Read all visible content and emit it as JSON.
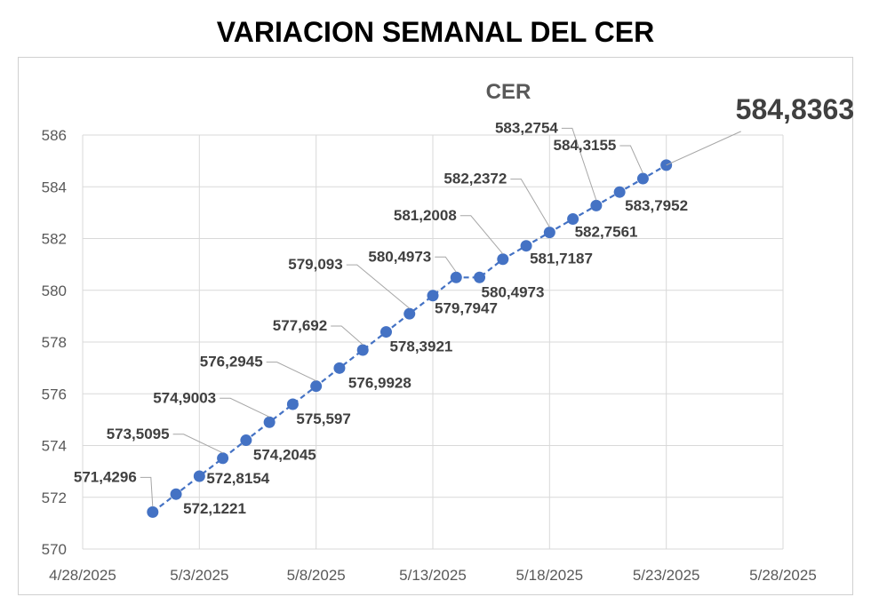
{
  "chart_data": {
    "type": "line",
    "title": "VARIACION SEMANAL DEL CER",
    "series": [
      {
        "name": "CER",
        "points": [
          {
            "x": "2025-05-01",
            "y": 571.4296,
            "label": "571,4296"
          },
          {
            "x": "2025-05-02",
            "y": 572.1221,
            "label": "572,1221"
          },
          {
            "x": "2025-05-03",
            "y": 572.8154,
            "label": "572,8154"
          },
          {
            "x": "2025-05-04",
            "y": 573.5095,
            "label": "573,5095"
          },
          {
            "x": "2025-05-05",
            "y": 574.2045,
            "label": "574,2045"
          },
          {
            "x": "2025-05-06",
            "y": 574.9003,
            "label": "574,9003"
          },
          {
            "x": "2025-05-07",
            "y": 575.597,
            "label": "575,597"
          },
          {
            "x": "2025-05-08",
            "y": 576.2945,
            "label": "576,2945"
          },
          {
            "x": "2025-05-09",
            "y": 576.9928,
            "label": "576,9928"
          },
          {
            "x": "2025-05-10",
            "y": 577.692,
            "label": "577,692"
          },
          {
            "x": "2025-05-11",
            "y": 578.3921,
            "label": "578,3921"
          },
          {
            "x": "2025-05-12",
            "y": 579.093,
            "label": "579,093"
          },
          {
            "x": "2025-05-13",
            "y": 579.7947,
            "label": "579,7947"
          },
          {
            "x": "2025-05-14",
            "y": 580.4973,
            "label": "580,4973"
          },
          {
            "x": "2025-05-15",
            "y": 580.4973,
            "label": "580,4973"
          },
          {
            "x": "2025-05-16",
            "y": 581.2008,
            "label": "581,2008"
          },
          {
            "x": "2025-05-17",
            "y": 581.7187,
            "label": "581,7187"
          },
          {
            "x": "2025-05-18",
            "y": 582.2372,
            "label": "582,2372"
          },
          {
            "x": "2025-05-19",
            "y": 582.7561,
            "label": "582,7561"
          },
          {
            "x": "2025-05-20",
            "y": 583.2754,
            "label": "583,2754"
          },
          {
            "x": "2025-05-21",
            "y": 583.7952,
            "label": "583,7952"
          },
          {
            "x": "2025-05-22",
            "y": 584.3155,
            "label": "584,3155"
          },
          {
            "x": "2025-05-23",
            "y": 584.8363,
            "label": "584,8363"
          }
        ]
      }
    ],
    "xaxis": {
      "range": [
        "2025-04-28",
        "2025-05-28"
      ],
      "ticks": [
        "4/28/2025",
        "5/3/2025",
        "5/8/2025",
        "5/13/2025",
        "5/18/2025",
        "5/23/2025",
        "5/28/2025"
      ]
    },
    "yaxis": {
      "range": [
        570,
        586
      ],
      "ticks": [
        "570",
        "572",
        "574",
        "576",
        "578",
        "580",
        "582",
        "584",
        "586"
      ]
    },
    "grid": true,
    "line_style": "dashed",
    "color": "#4472C4"
  }
}
